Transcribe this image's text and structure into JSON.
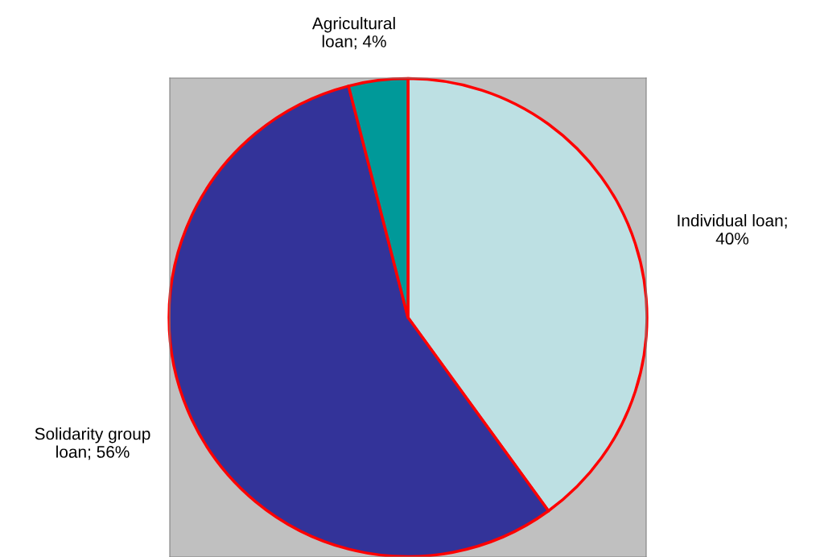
{
  "chart_data": {
    "type": "pie",
    "categories": [
      "Individual loan; 40%",
      "Solidarity group loan; 56%",
      "Agricultural loan; 4%"
    ],
    "values": [
      40,
      56,
      4
    ],
    "colors": [
      "#bde0e3",
      "#333399",
      "#009999"
    ]
  }
}
